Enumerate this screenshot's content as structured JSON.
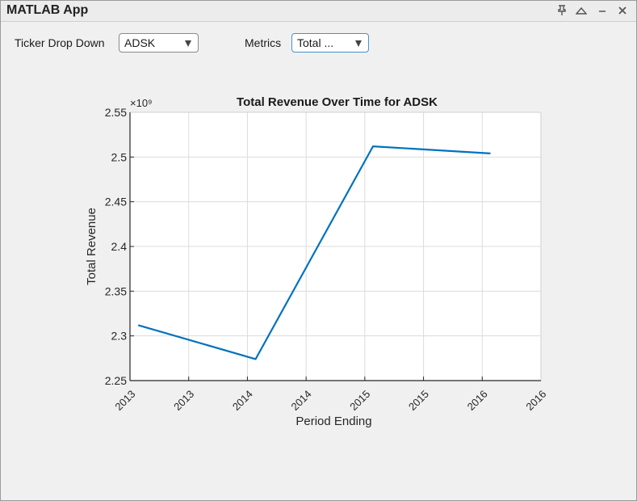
{
  "window": {
    "title": "MATLAB App"
  },
  "controls": {
    "ticker_label": "Ticker Drop Down",
    "ticker_value": "ADSK",
    "metrics_label": "Metrics",
    "metrics_value": "Total ..."
  },
  "colors": {
    "series": "#0072BD",
    "grid": "#dcdcdc",
    "axis": "#262626"
  },
  "chart_data": {
    "type": "line",
    "title": "Total Revenue Over Time for ADSK",
    "xlabel": "Period Ending",
    "ylabel": "Total Revenue",
    "y_exponent_label": "×10⁹",
    "x_tick_labels": [
      "2013",
      "2013",
      "2014",
      "2014",
      "2015",
      "2015",
      "2016",
      "2016"
    ],
    "x_ticks": [
      2013.0,
      2013.5,
      2014.0,
      2014.5,
      2015.0,
      2015.5,
      2016.0,
      2016.5
    ],
    "xlim": [
      2013.0,
      2016.5
    ],
    "y_ticks": [
      2.25,
      2.3,
      2.35,
      2.4,
      2.45,
      2.5,
      2.55
    ],
    "y_tick_labels": [
      "2.25",
      "2.3",
      "2.35",
      "2.4",
      "2.45",
      "2.5",
      "2.55"
    ],
    "ylim": [
      2.25,
      2.55
    ],
    "grid": true,
    "series": [
      {
        "x": [
          2013.07,
          2014.07,
          2015.07,
          2016.07
        ],
        "y": [
          2.312,
          2.274,
          2.512,
          2.504
        ]
      }
    ]
  }
}
